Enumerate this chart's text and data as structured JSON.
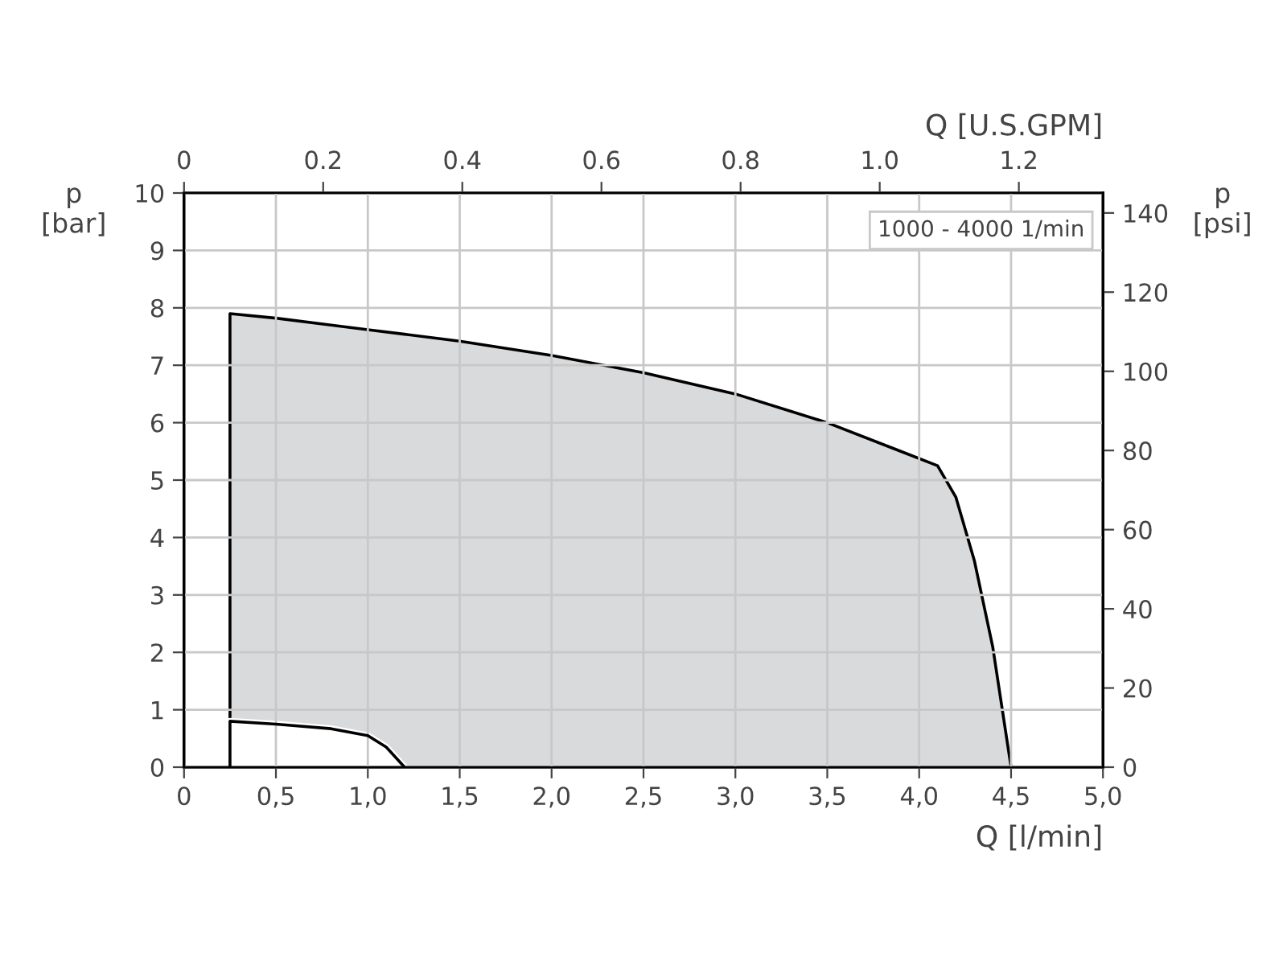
{
  "chart_data": {
    "type": "area",
    "xlabel": "Q [l/min]",
    "ylabel": "p\n[bar]",
    "y2label": "p\n[psi]",
    "x2label": "Q [U.S.GPM]",
    "annotations": [
      "1000 - 4000 1/min"
    ],
    "series": [
      {
        "color": "#d9dadc",
        "x": [
          0.25,
          0.5,
          0.8,
          1.0,
          1.2,
          1.5,
          2.0,
          2.5,
          3.0,
          3.5,
          3.9,
          4.1,
          4.2,
          4.3,
          4.4,
          4.5
        ],
        "values": [
          7.9,
          7.82,
          7.7,
          7.62,
          7.54,
          7.42,
          7.17,
          6.87,
          6.5,
          6.0,
          5.5,
          5.25,
          4.7,
          3.6,
          2.1,
          0
        ]
      },
      {
        "color": "#ffffff",
        "x": [
          0.25,
          0.5,
          0.8,
          1.0,
          1.1,
          1.2
        ],
        "values": [
          0.8,
          0.75,
          0.67,
          0.55,
          0.35,
          0
        ]
      }
    ],
    "xlim": [
      0,
      5
    ],
    "xticks": [
      0,
      {
        "value": 0.5,
        "label": "0,5"
      },
      {
        "value": 1,
        "label": "1,0"
      },
      {
        "value": 1.5,
        "label": "1,5"
      },
      {
        "value": 2,
        "label": "2,0"
      },
      {
        "value": 2.5,
        "label": "2,5"
      },
      {
        "value": 3,
        "label": "3,0"
      },
      {
        "value": 3.5,
        "label": "3,5"
      },
      {
        "value": 4,
        "label": "4,0"
      },
      {
        "value": 4.5,
        "label": "4,5"
      },
      {
        "value": 5,
        "label": "5,0"
      }
    ],
    "ylim": [
      0,
      10
    ],
    "yticks": [
      0,
      1,
      2,
      3,
      4,
      5,
      6,
      7,
      8,
      9,
      10
    ],
    "y2lim": [
      0,
      145.04
    ],
    "y2ticks": [
      0,
      20,
      40,
      60,
      80,
      100,
      120,
      140
    ],
    "x2lim": [
      0,
      1.3209
    ],
    "x2ticks": [
      0,
      0.2,
      0.4,
      0.6,
      0.8,
      {
        "value": 1,
        "label": "1.0"
      },
      1.2
    ],
    "grid": true
  }
}
